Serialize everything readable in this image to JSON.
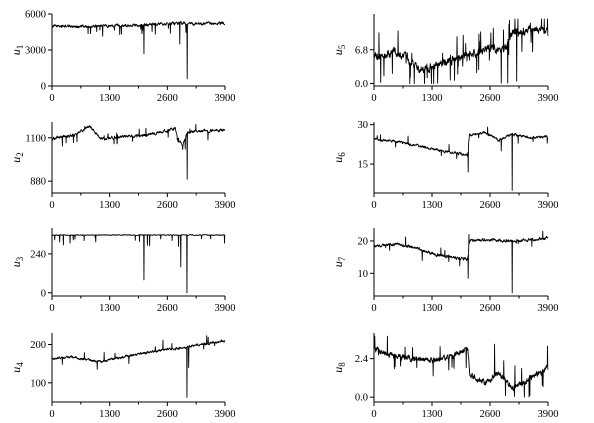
{
  "chart_data": [
    {
      "id": "u1",
      "type": "line",
      "ylabel": "u",
      "ylabel_sub": "1",
      "xlim": [
        0,
        3900
      ],
      "ylim": [
        0,
        6000
      ],
      "xticks": [
        "0",
        "1300",
        "2600",
        "3900"
      ],
      "yticks": [
        {
          "v": 0,
          "label": "0"
        },
        {
          "v": 3000,
          "label": "3000"
        },
        {
          "v": 6000,
          "label": "6000"
        }
      ],
      "baseline": [
        [
          0,
          5000
        ],
        [
          800,
          4950
        ],
        [
          1500,
          5050
        ],
        [
          2200,
          5100
        ],
        [
          2900,
          5250
        ],
        [
          3300,
          5150
        ],
        [
          3900,
          5250
        ]
      ],
      "noise": 220,
      "spike_rate": 0.025,
      "spike_depth": [
        200,
        900
      ],
      "spike_sign": -1,
      "events": [
        {
          "x": 2070,
          "y": 2700
        },
        {
          "x": 2880,
          "y": 3500
        },
        {
          "x": 3050,
          "y": 600
        }
      ],
      "clip": [
        0,
        5800
      ]
    },
    {
      "id": "u2",
      "type": "line",
      "ylabel": "u",
      "ylabel_sub": "2",
      "xlim": [
        0,
        3900
      ],
      "ylim": [
        820,
        1180
      ],
      "xticks": [
        "0",
        "1300",
        "2600",
        "3900"
      ],
      "yticks": [
        {
          "v": 880,
          "label": "880"
        },
        {
          "v": 1100,
          "label": "1100"
        }
      ],
      "baseline": [
        [
          0,
          1095
        ],
        [
          500,
          1115
        ],
        [
          850,
          1160
        ],
        [
          1100,
          1095
        ],
        [
          1500,
          1105
        ],
        [
          2000,
          1110
        ],
        [
          2400,
          1125
        ],
        [
          2780,
          1148
        ],
        [
          2850,
          1080
        ],
        [
          2950,
          1060
        ],
        [
          3050,
          1130
        ],
        [
          3900,
          1140
        ]
      ],
      "noise": 14,
      "spike_rate": 0.03,
      "spike_depth": [
        15,
        50
      ],
      "spike_sign": 0,
      "events": [
        {
          "x": 3050,
          "y": 890
        },
        {
          "x": 2950,
          "y": 1040
        }
      ],
      "clip": [
        830,
        1175
      ]
    },
    {
      "id": "u3",
      "type": "line",
      "ylabel": "u",
      "ylabel_sub": "3",
      "xlim": [
        0,
        3900
      ],
      "ylim": [
        -20,
        400
      ],
      "xticks": [
        "0",
        "1300",
        "2600",
        "3900"
      ],
      "yticks": [
        {
          "v": 0,
          "label": "0"
        },
        {
          "v": 240,
          "label": "240"
        }
      ],
      "baseline": [
        [
          0,
          355
        ],
        [
          1500,
          357
        ],
        [
          3900,
          356
        ]
      ],
      "noise": 5,
      "spike_rate": 0.03,
      "spike_depth": [
        10,
        70
      ],
      "spike_sign": -1,
      "events": [
        {
          "x": 2070,
          "y": 80
        },
        {
          "x": 2900,
          "y": 160
        },
        {
          "x": 3040,
          "y": 0
        },
        {
          "x": 2200,
          "y": 290
        }
      ],
      "clip": [
        0,
        372
      ]
    },
    {
      "id": "u4",
      "type": "line",
      "ylabel": "u",
      "ylabel_sub": "4",
      "xlim": [
        0,
        3900
      ],
      "ylim": [
        50,
        230
      ],
      "xticks": [
        "0",
        "1300",
        "2600",
        "3900"
      ],
      "yticks": [
        {
          "v": 100,
          "label": "100"
        },
        {
          "v": 200,
          "label": "200"
        }
      ],
      "baseline": [
        [
          0,
          162
        ],
        [
          400,
          168
        ],
        [
          1100,
          155
        ],
        [
          1700,
          170
        ],
        [
          2300,
          182
        ],
        [
          2800,
          190
        ],
        [
          3100,
          195
        ],
        [
          3600,
          205
        ],
        [
          3900,
          210
        ]
      ],
      "noise": 6,
      "spike_rate": 0.02,
      "spike_depth": [
        8,
        25
      ],
      "spike_sign": 0,
      "events": [
        {
          "x": 3040,
          "y": 62
        },
        {
          "x": 3080,
          "y": 140
        }
      ],
      "clip": [
        55,
        225
      ]
    },
    {
      "id": "u5",
      "type": "line",
      "ylabel": "u",
      "ylabel_sub": "5",
      "xlim": [
        0,
        3900
      ],
      "ylim": [
        -0.5,
        14
      ],
      "xticks": [
        "0",
        "1300",
        "2600",
        "3900"
      ],
      "yticks": [
        {
          "v": 0,
          "label": "0.0"
        },
        {
          "v": 6.8,
          "label": "6.8"
        }
      ],
      "baseline": [
        [
          0,
          5.0
        ],
        [
          400,
          6.5
        ],
        [
          700,
          5.5
        ],
        [
          1000,
          2.5
        ],
        [
          1400,
          3.5
        ],
        [
          1800,
          5.0
        ],
        [
          2200,
          6.0
        ],
        [
          2600,
          7.5
        ],
        [
          2900,
          6.5
        ],
        [
          3100,
          10.0
        ],
        [
          3500,
          11.0
        ],
        [
          3900,
          10.5
        ]
      ],
      "noise": 1.6,
      "spike_rate": 0.06,
      "spike_depth": [
        1.5,
        5
      ],
      "spike_sign": 0,
      "events": [
        {
          "x": 150,
          "y": 0.2
        },
        {
          "x": 2850,
          "y": 0.1
        },
        {
          "x": 3000,
          "y": 0.1
        },
        {
          "x": 3200,
          "y": 0.5
        }
      ],
      "clip": [
        0,
        13
      ]
    },
    {
      "id": "u6",
      "type": "line",
      "ylabel": "u",
      "ylabel_sub": "6",
      "xlim": [
        0,
        3900
      ],
      "ylim": [
        4,
        31
      ],
      "xticks": [
        "0",
        "1300",
        "2600",
        "3900"
      ],
      "yticks": [
        {
          "v": 15,
          "label": "15"
        },
        {
          "v": 30,
          "label": "30"
        }
      ],
      "baseline": [
        [
          0,
          24.5
        ],
        [
          500,
          23.5
        ],
        [
          1000,
          22
        ],
        [
          1500,
          20
        ],
        [
          2100,
          18.5
        ],
        [
          2140,
          26
        ],
        [
          2500,
          27
        ],
        [
          2800,
          24
        ],
        [
          3100,
          26.5
        ],
        [
          3500,
          25
        ],
        [
          3900,
          25.5
        ]
      ],
      "noise": 0.9,
      "spike_rate": 0.02,
      "spike_depth": [
        1,
        3
      ],
      "spike_sign": 0,
      "events": [
        {
          "x": 2110,
          "y": 12
        },
        {
          "x": 3100,
          "y": 5
        },
        {
          "x": 2850,
          "y": 20
        }
      ],
      "clip": [
        5,
        30
      ]
    },
    {
      "id": "u7",
      "type": "line",
      "ylabel": "u",
      "ylabel_sub": "7",
      "xlim": [
        0,
        3900
      ],
      "ylim": [
        3,
        24
      ],
      "xticks": [
        "0",
        "1300",
        "2600",
        "3900"
      ],
      "yticks": [
        {
          "v": 10,
          "label": "10"
        },
        {
          "v": 20,
          "label": "20"
        }
      ],
      "baseline": [
        [
          0,
          18.5
        ],
        [
          500,
          19
        ],
        [
          900,
          18
        ],
        [
          1300,
          16
        ],
        [
          1700,
          15
        ],
        [
          2100,
          14.5
        ],
        [
          2140,
          20
        ],
        [
          2600,
          20.5
        ],
        [
          3100,
          20
        ],
        [
          3900,
          20.8
        ]
      ],
      "noise": 0.9,
      "spike_rate": 0.02,
      "spike_depth": [
        1,
        3
      ],
      "spike_sign": 0,
      "events": [
        {
          "x": 2110,
          "y": 8.5
        },
        {
          "x": 3100,
          "y": 4
        },
        {
          "x": 2130,
          "y": 22
        }
      ],
      "clip": [
        4,
        23
      ]
    },
    {
      "id": "u8",
      "type": "line",
      "ylabel": "u",
      "ylabel_sub": "8",
      "xlim": [
        0,
        3900
      ],
      "ylim": [
        -0.3,
        4.0
      ],
      "xticks": [
        "0",
        "1300",
        "2600",
        "3900"
      ],
      "yticks": [
        {
          "v": 0,
          "label": "0.0"
        },
        {
          "v": 2.4,
          "label": "2.4"
        }
      ],
      "baseline": [
        [
          0,
          3.0
        ],
        [
          300,
          2.7
        ],
        [
          800,
          2.4
        ],
        [
          1300,
          2.3
        ],
        [
          1800,
          2.6
        ],
        [
          2100,
          3.0
        ],
        [
          2150,
          1.4
        ],
        [
          2500,
          0.9
        ],
        [
          2800,
          1.5
        ],
        [
          3100,
          0.6
        ],
        [
          3400,
          1.0
        ],
        [
          3900,
          1.8
        ]
      ],
      "noise": 0.35,
      "spike_rate": 0.04,
      "spike_depth": [
        0.4,
        1.4
      ],
      "spike_sign": 0,
      "events": [
        {
          "x": 2700,
          "y": 3.3
        },
        {
          "x": 2950,
          "y": 0.1
        },
        {
          "x": 3150,
          "y": 0.05
        }
      ],
      "clip": [
        0,
        3.8
      ]
    }
  ]
}
